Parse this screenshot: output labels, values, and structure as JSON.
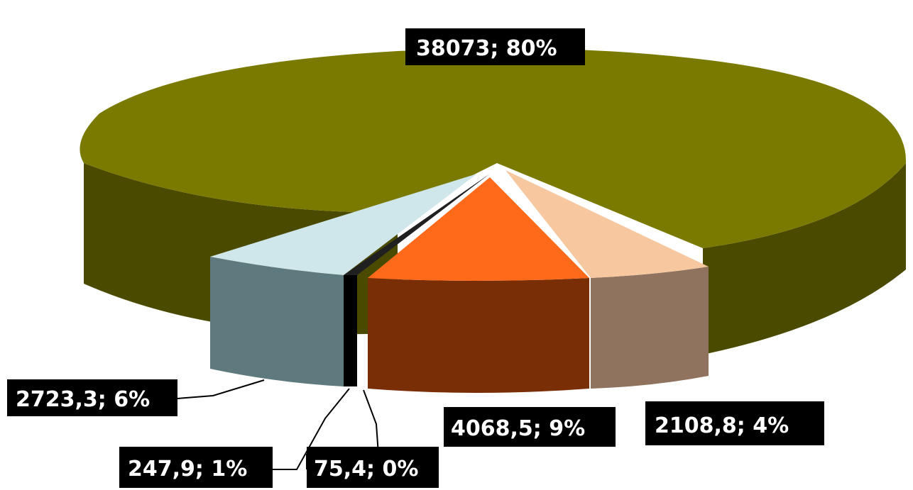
{
  "chart_data": {
    "type": "pie",
    "title": "",
    "slices": [
      {
        "value": 38073,
        "percent": 80,
        "label": "38073; 80%",
        "top_color": "#7a7a00",
        "side_color": "#4a4a00"
      },
      {
        "value": 2108.8,
        "percent": 4,
        "label": "2108,8; 4%",
        "top_color": "#f7c8a0",
        "side_color": "#8f735f"
      },
      {
        "value": 4068.5,
        "percent": 9,
        "label": "4068,5; 9%",
        "top_color": "#ff6a1a",
        "side_color": "#7a2e05"
      },
      {
        "value": 75.4,
        "percent": 0,
        "label": "75,4; 0%",
        "top_color": "#202020",
        "side_color": "#000000"
      },
      {
        "value": 247.9,
        "percent": 1,
        "label": "247,9; 1%",
        "top_color": "#1a1a1a",
        "side_color": "#000000"
      },
      {
        "value": 2723.3,
        "percent": 6,
        "label": "2723,3; 6%",
        "top_color": "#cfe6ea",
        "side_color": "#5f7a7e"
      }
    ],
    "label_style": {
      "box_color": "#000000",
      "text_color": "#ffffff"
    }
  }
}
